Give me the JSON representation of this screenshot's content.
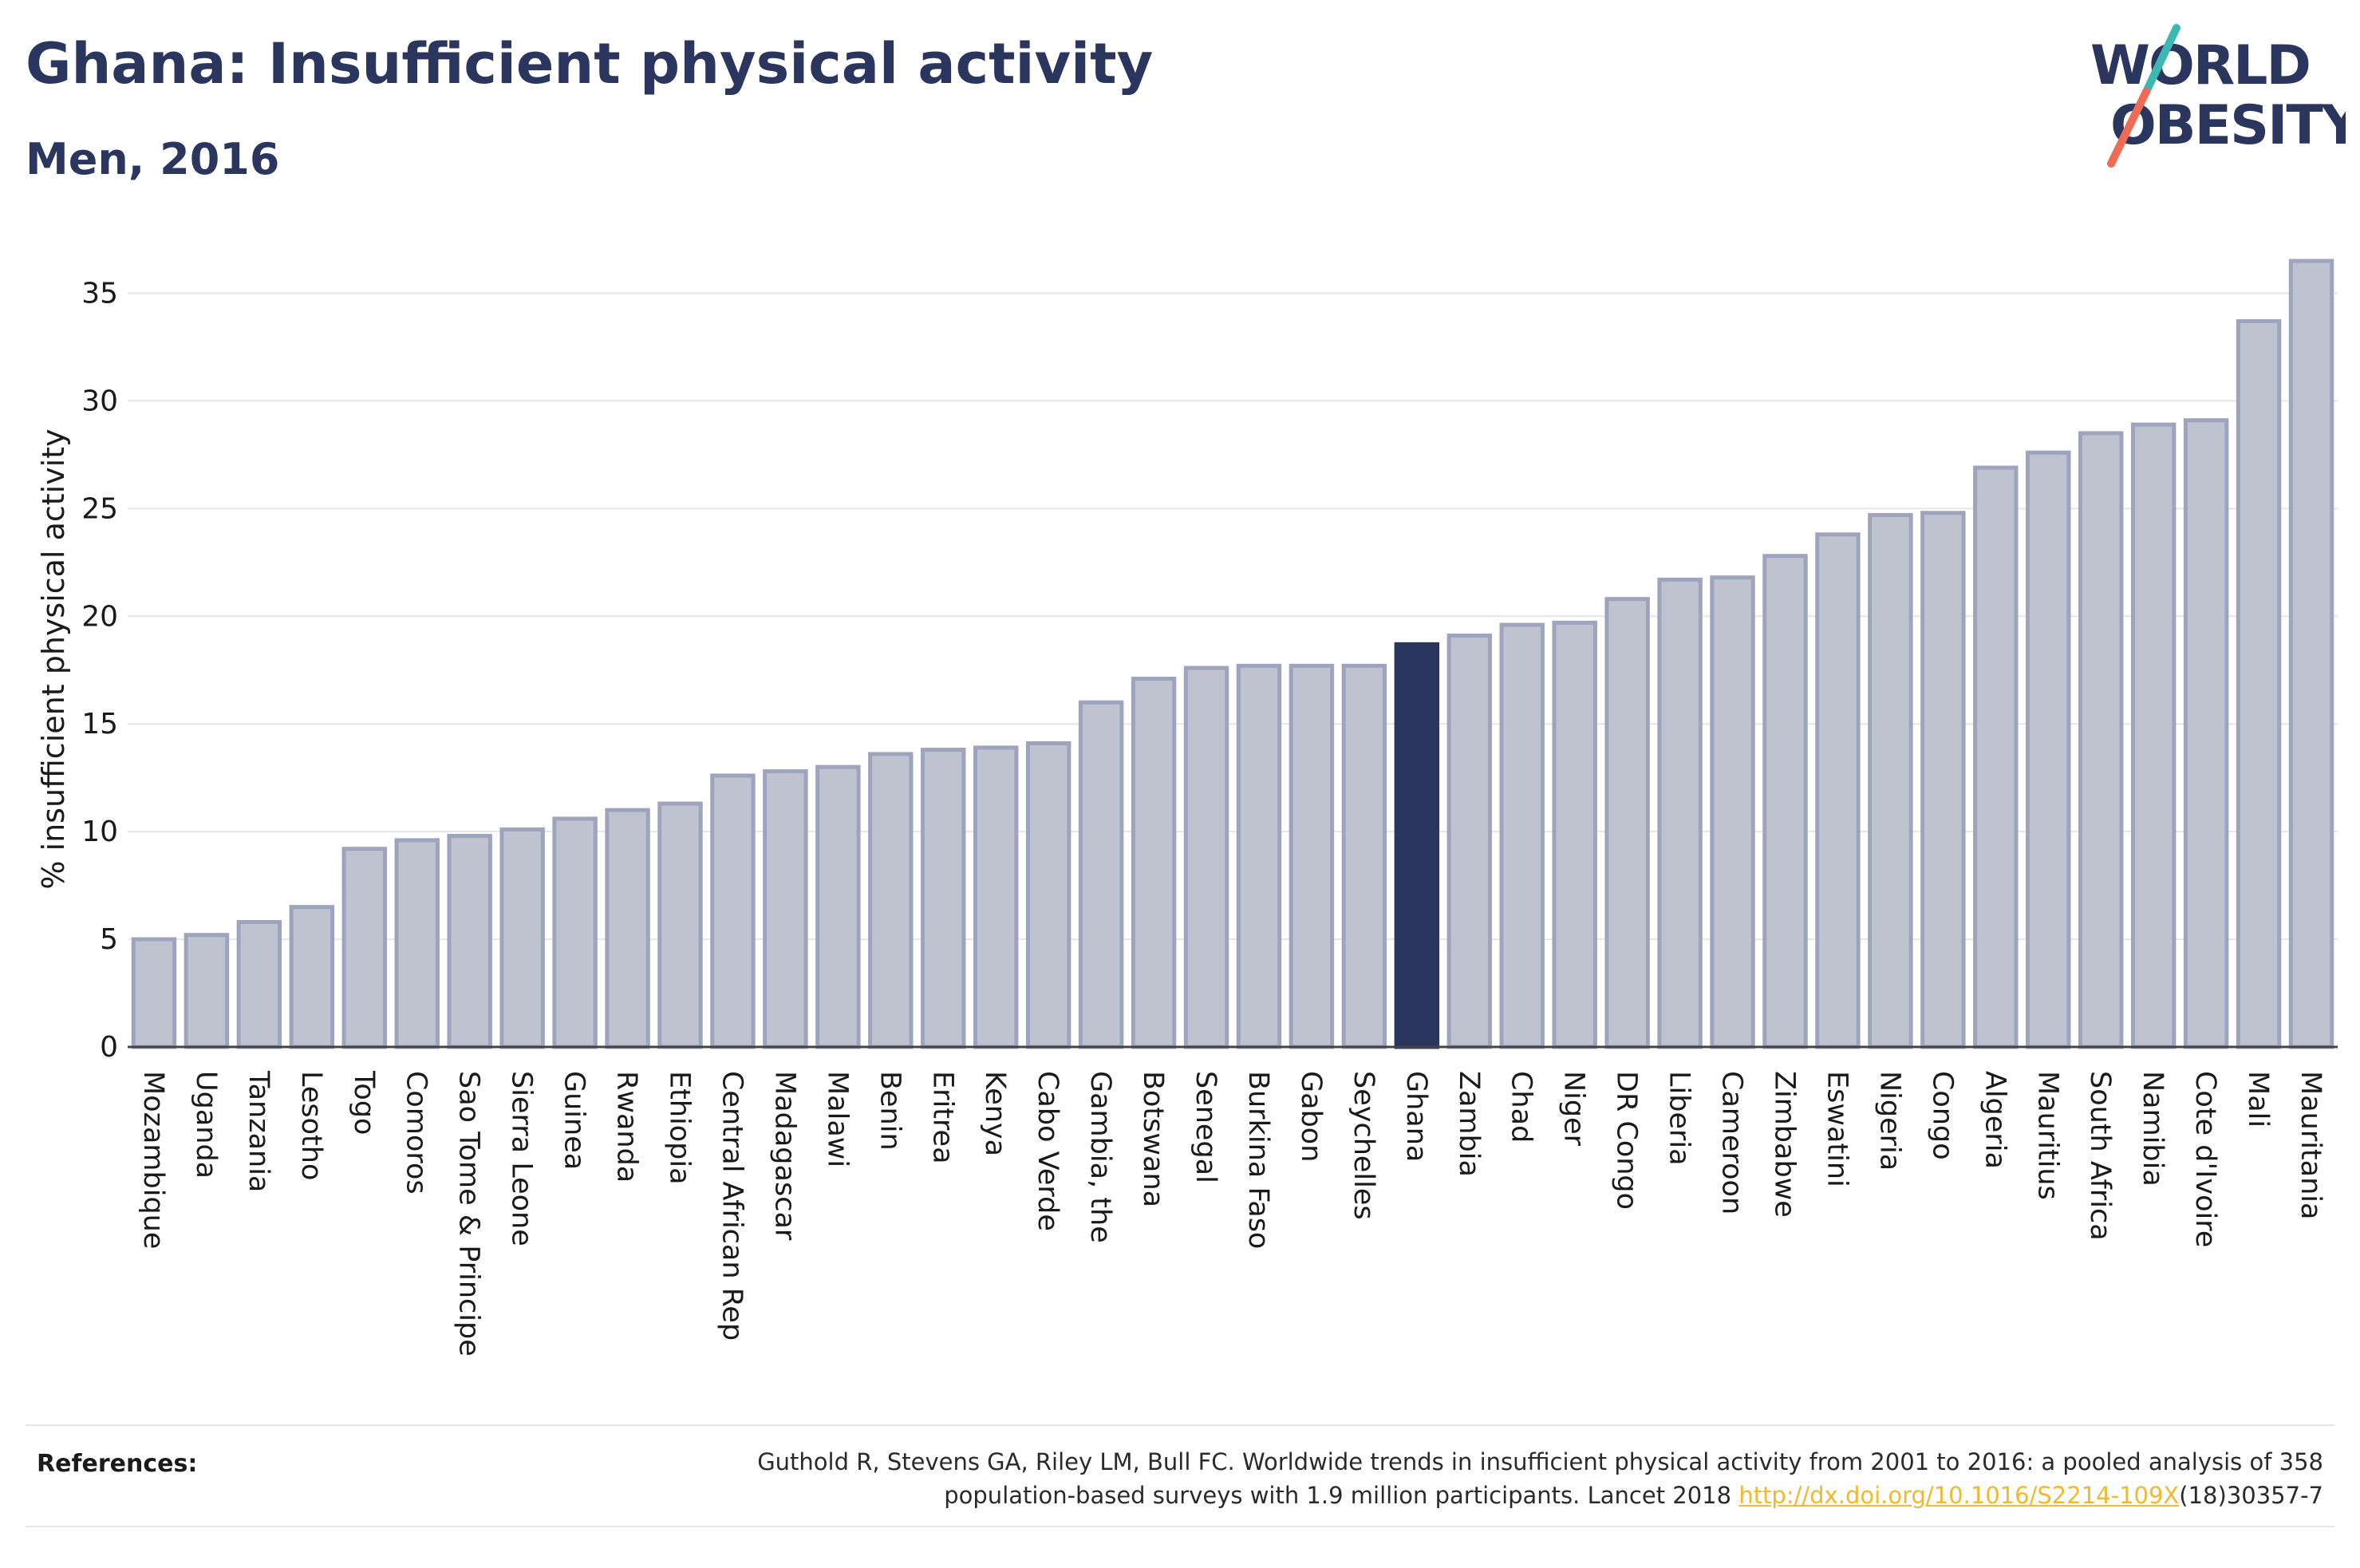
{
  "header": {
    "title": "Ghana: Insufficient physical activity",
    "subtitle": "Men, 2016"
  },
  "logo": {
    "line1": "WORLD",
    "line2": "OBESITY",
    "colors": {
      "text": "#2b365f",
      "slash_top": "#3cb9b3",
      "slash_bottom": "#ef6b55"
    }
  },
  "colors": {
    "bar_fill": "#bfc3d0",
    "bar_stroke": "#9ea4bd",
    "highlight": "#2b365f",
    "gridline": "#e6e6e6"
  },
  "chart_data": {
    "type": "bar",
    "ylabel": "% insufficient physical activity",
    "ylim": [
      0,
      37.5
    ],
    "yticks": [
      0,
      5,
      10,
      15,
      20,
      25,
      30,
      35
    ],
    "grid": true,
    "highlight": "Ghana",
    "categories": [
      "Mozambique",
      "Uganda",
      "Tanzania",
      "Lesotho",
      "Togo",
      "Comoros",
      "Sao Tome & Principe",
      "Sierra Leone",
      "Guinea",
      "Rwanda",
      "Ethiopia",
      "Central African Rep",
      "Madagascar",
      "Malawi",
      "Benin",
      "Eritrea",
      "Kenya",
      "Cabo Verde",
      "Gambia, the",
      "Botswana",
      "Senegal",
      "Burkina Faso",
      "Gabon",
      "Seychelles",
      "Ghana",
      "Zambia",
      "Chad",
      "Niger",
      "DR Congo",
      "Liberia",
      "Cameroon",
      "Zimbabwe",
      "Eswatini",
      "Nigeria",
      "Congo",
      "Algeria",
      "Mauritius",
      "South Africa",
      "Namibia",
      "Cote d'Ivoire",
      "Mali",
      "Mauritania"
    ],
    "values": [
      5.0,
      5.2,
      5.8,
      6.5,
      9.2,
      9.6,
      9.8,
      10.1,
      10.6,
      11.0,
      11.3,
      12.6,
      12.8,
      13.0,
      13.6,
      13.8,
      13.9,
      14.1,
      16.0,
      17.1,
      17.6,
      17.7,
      17.7,
      17.7,
      18.7,
      19.1,
      19.6,
      19.7,
      20.8,
      21.7,
      21.8,
      22.8,
      23.8,
      24.7,
      24.8,
      26.9,
      27.6,
      28.5,
      28.9,
      29.1,
      33.7,
      36.5
    ]
  },
  "references": {
    "label": "References:",
    "line1": "Guthold R, Stevens GA, Riley LM, Bull FC. Worldwide trends in insufficient physical activity from 2001 to 2016: a pooled analysis of 358",
    "line2_prefix": "population-based surveys with 1.9 million participants. Lancet 2018 ",
    "link_text": "http://dx.doi.org/10.1016/S2214-109X",
    "line2_suffix": "(18)30357-7"
  }
}
